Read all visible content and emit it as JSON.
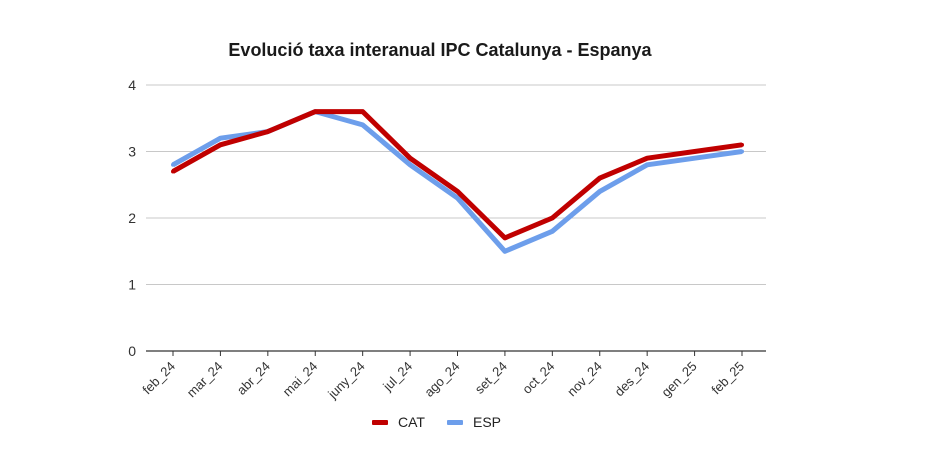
{
  "chart_data": {
    "type": "line",
    "title": "Evolució taxa interanual IPC Catalunya - Espanya",
    "xlabel": "",
    "ylabel": "",
    "ylim": [
      0,
      4
    ],
    "yticks": [
      "0",
      "1",
      "2",
      "3",
      "4"
    ],
    "grid": true,
    "legend_position": "bottom",
    "categories": [
      "feb_24",
      "mar_24",
      "abr_24",
      "mai_24",
      "juny_24",
      "jul_24",
      "ago_24",
      "set_24",
      "oct_24",
      "nov_24",
      "des_24",
      "gen_25",
      "feb_25"
    ],
    "series": [
      {
        "name": "CAT",
        "color": "#c00000",
        "values": [
          2.7,
          3.1,
          3.3,
          3.6,
          3.6,
          2.9,
          2.4,
          1.7,
          2.0,
          2.6,
          2.9,
          3.0,
          3.1
        ]
      },
      {
        "name": "ESP",
        "color": "#6d9eeb",
        "values": [
          2.8,
          3.2,
          3.3,
          3.6,
          3.4,
          2.8,
          2.3,
          1.5,
          1.8,
          2.4,
          2.8,
          2.9,
          3.0
        ]
      }
    ]
  }
}
